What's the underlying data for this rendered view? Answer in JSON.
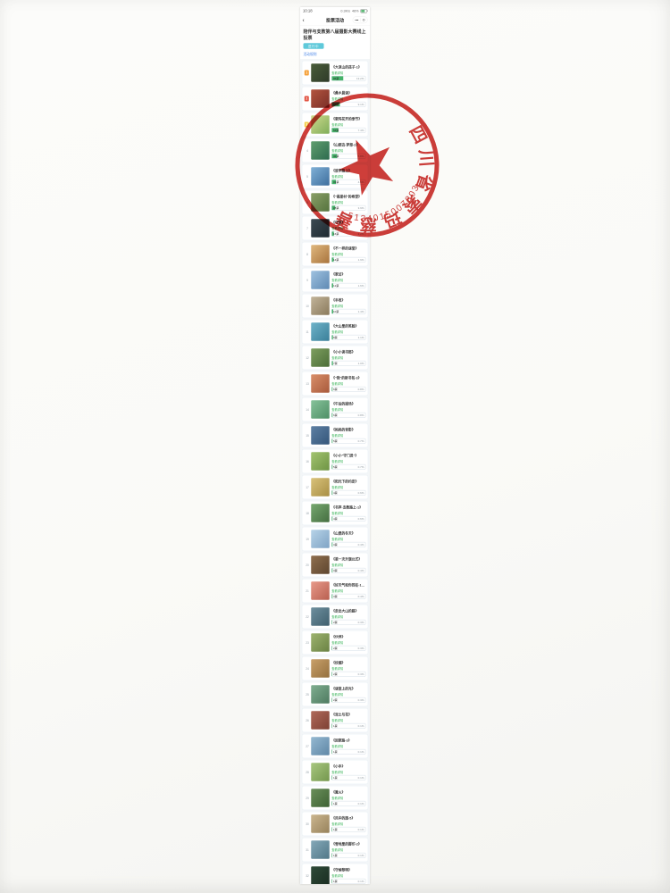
{
  "phone": {
    "status_bar": {
      "time": "10:18",
      "net_speed": "0.3K/s",
      "battery_percent": "46%"
    },
    "nav": {
      "back": "‹",
      "title": "投票活动",
      "more": "•••",
      "exit": "⊙"
    },
    "header": {
      "title": "陪伴与支教第八届摄影大赛线上投票",
      "status_tag": "进行中",
      "rules_link": "活动规则"
    },
    "list": {
      "detail_label": "查看详情",
      "vote_suffix": "票",
      "medal_colors": [
        "#f5a23c",
        "#e25545",
        "#f3cf4e"
      ],
      "items": [
        {
          "rank": 1,
          "title": "《大凉山的孩子-1》",
          "votes": 96,
          "percent": "13.2%",
          "fill": 34,
          "thumb": [
            "#4a5d3a",
            "#2f3b2a"
          ]
        },
        {
          "rank": 2,
          "title": "《彝乡晨读》",
          "votes": 66,
          "percent": "9.1%",
          "fill": 24,
          "thumb": [
            "#b3543f",
            "#7a2f27"
          ]
        },
        {
          "rank": 3,
          "title": "《索玛花开的季节》",
          "votes": 54,
          "percent": "7.4%",
          "fill": 19,
          "thumb": [
            "#cfd98c",
            "#7fae5a"
          ]
        },
        {
          "rank": 4,
          "title": "《山那边·梦想-2》",
          "votes": 42,
          "percent": "5.8%",
          "fill": 15,
          "thumb": [
            "#5f9e6e",
            "#2e6b4f"
          ]
        },
        {
          "rank": 5,
          "title": "《放学路上》",
          "votes": 33,
          "percent": "4.6%",
          "fill": 12,
          "thumb": [
            "#7fb0d6",
            "#3f6f9e"
          ]
        },
        {
          "rank": 6,
          "title": "《\"悬崖村\"的希望》",
          "votes": 28,
          "percent": "3.9%",
          "fill": 10,
          "thumb": [
            "#8a9f67",
            "#55743f"
          ]
        },
        {
          "rank": 7,
          "title": "《守望》",
          "votes": 16,
          "percent": "2.2%",
          "fill": 6,
          "thumb": [
            "#3c4a52",
            "#1f2a31"
          ]
        },
        {
          "rank": 8,
          "title": "《不一样的课堂》",
          "votes": 14,
          "percent": "1.9%",
          "fill": 5,
          "thumb": [
            "#e0b87f",
            "#a8743d"
          ]
        },
        {
          "rank": 9,
          "title": "《家访》",
          "votes": 12,
          "percent": "1.6%",
          "fill": 4,
          "thumb": [
            "#9fc2e0",
            "#5e89b3"
          ]
        },
        {
          "rank": 10,
          "title": "《丰收》",
          "votes": 10,
          "percent": "1.4%",
          "fill": 4,
          "thumb": [
            "#c2b49a",
            "#8a7a5c"
          ]
        },
        {
          "rank": 11,
          "title": "《大山里的笑脸》",
          "votes": 8,
          "percent": "1.1%",
          "fill": 3,
          "thumb": [
            "#6fb3c9",
            "#3a7f99"
          ]
        },
        {
          "rank": 12,
          "title": "《小小读书郎》",
          "votes": 7,
          "percent": "1.0%",
          "fill": 3,
          "thumb": [
            "#7d9e5f",
            "#4c6e38"
          ]
        },
        {
          "rank": 13,
          "title": "《\"我\"的新书包-3》",
          "votes": 6,
          "percent": "0.8%",
          "fill": 2,
          "thumb": [
            "#d98f6a",
            "#a85a3c"
          ]
        },
        {
          "rank": 14,
          "title": "《午后的操场》",
          "votes": 6,
          "percent": "0.8%",
          "fill": 2,
          "thumb": [
            "#86c29a",
            "#4f8f66"
          ]
        },
        {
          "rank": 15,
          "title": "《妈妈的背影》",
          "votes": 5,
          "percent": "0.7%",
          "fill": 2,
          "thumb": [
            "#5d7fa3",
            "#34567a"
          ]
        },
        {
          "rank": 16,
          "title": "《小小\"守门员\"》",
          "votes": 5,
          "percent": "0.7%",
          "fill": 2,
          "thumb": [
            "#a3c46f",
            "#6e9444"
          ]
        },
        {
          "rank": 17,
          "title": "《阳光下的约定》",
          "votes": 4,
          "percent": "0.6%",
          "fill": 2,
          "thumb": [
            "#d9c27a",
            "#a88f45"
          ]
        },
        {
          "rank": 18,
          "title": "《书声·支教路上-1》",
          "votes": 4,
          "percent": "0.6%",
          "fill": 2,
          "thumb": [
            "#76a86f",
            "#456e41"
          ]
        },
        {
          "rank": 19,
          "title": "《山里的冬天》",
          "votes": 3,
          "percent": "0.4%",
          "fill": 2,
          "thumb": [
            "#b7d3e8",
            "#7fa3c4"
          ]
        },
        {
          "rank": 20,
          "title": "《第一次升旗仪式》",
          "votes": 3,
          "percent": "0.4%",
          "fill": 2,
          "thumb": [
            "#8f6f4f",
            "#5e4630"
          ]
        },
        {
          "rank": 21,
          "title": "《好天气和你同在-10》",
          "votes": 3,
          "percent": "0.4%",
          "fill": 2,
          "thumb": [
            "#e89a8a",
            "#b85f50"
          ]
        },
        {
          "rank": 22,
          "title": "《走出大山的路》",
          "votes": 2,
          "percent": "0.3%",
          "fill": 1,
          "thumb": [
            "#6e8f9e",
            "#40606e"
          ]
        },
        {
          "rank": 23,
          "title": "《伙伴》",
          "votes": 2,
          "percent": "0.3%",
          "fill": 1,
          "thumb": [
            "#9db36f",
            "#6a8244"
          ]
        },
        {
          "rank": 24,
          "title": "《炊烟》",
          "votes": 2,
          "percent": "0.3%",
          "fill": 1,
          "thumb": [
            "#c9a06a",
            "#94703e"
          ]
        },
        {
          "rank": 25,
          "title": "《课堂上的光》",
          "votes": 2,
          "percent": "0.3%",
          "fill": 1,
          "thumb": [
            "#7fae90",
            "#4e7a60"
          ]
        },
        {
          "rank": 26,
          "title": "《泥土与花》",
          "votes": 1,
          "percent": "0.1%",
          "fill": 1,
          "thumb": [
            "#b06a5a",
            "#7d4034"
          ]
        },
        {
          "rank": 27,
          "title": "《回家路-3》",
          "votes": 1,
          "percent": "0.1%",
          "fill": 1,
          "thumb": [
            "#94b8d1",
            "#5f87a6"
          ]
        },
        {
          "rank": 28,
          "title": "《小手》",
          "votes": 1,
          "percent": "0.1%",
          "fill": 1,
          "thumb": [
            "#a8c77f",
            "#74974e"
          ]
        },
        {
          "rank": 29,
          "title": "《篝火》",
          "votes": 1,
          "percent": "0.1%",
          "fill": 1,
          "thumb": [
            "#6a8f5a",
            "#3e6234"
          ]
        },
        {
          "rank": 30,
          "title": "《风中的旗-5》",
          "votes": 1,
          "percent": "0.1%",
          "fill": 1,
          "thumb": [
            "#cbb68f",
            "#97825c"
          ]
        },
        {
          "rank": 31,
          "title": "《雪地里的脚印-2》",
          "votes": 1,
          "percent": "0.1%",
          "fill": 1,
          "thumb": [
            "#84a8b8",
            "#527888"
          ]
        },
        {
          "rank": 32,
          "title": "《守候黎明》",
          "votes": 1,
          "percent": "0.1%",
          "fill": 1,
          "thumb": [
            "#2f4a38",
            "#1a2e22"
          ]
        }
      ]
    }
  },
  "stamp": {
    "org_name": "四川省索玛慈善基金会",
    "code": "5134015007803",
    "color": "#c8231e"
  }
}
